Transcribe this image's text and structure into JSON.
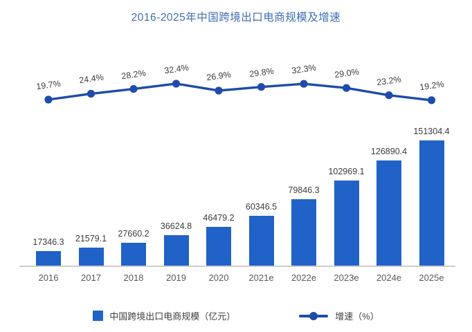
{
  "page": {
    "background_color": "#ffffff"
  },
  "chart_data": {
    "type": "bar",
    "combo": "bar+line",
    "title": "2016-2025年中国跨境出口电商规模及增速",
    "title_color": "#3e6cb5",
    "categories": [
      "2016",
      "2017",
      "2018",
      "2019",
      "2020",
      "2021e",
      "2022e",
      "2023e",
      "2024e",
      "2025e"
    ],
    "series": [
      {
        "name": "中国跨境出口电商规模（亿元）",
        "type": "bar",
        "color": "#2062c8",
        "values": [
          17346.3,
          21579.1,
          27660.2,
          36624.8,
          46479.2,
          60346.5,
          79846.3,
          102969.1,
          126890.4,
          151304.4
        ],
        "labels": [
          "17346.3",
          "21579.1",
          "27660.2",
          "36624.8",
          "46479.2",
          "60346.5",
          "79846.3",
          "102969.1",
          "126890.4",
          "151304.4"
        ]
      },
      {
        "name": "增速（%）",
        "type": "line",
        "color": "#1e4ca8",
        "values": [
          19.7,
          24.4,
          28.2,
          32.4,
          26.9,
          29.8,
          32.3,
          29.0,
          23.2,
          19.2
        ],
        "labels": [
          "19.7%",
          "24.4%",
          "28.2%",
          "32.4%",
          "26.9%",
          "29.8%",
          "32.3%",
          "29.0%",
          "23.2%",
          "19.2%"
        ]
      }
    ],
    "legend_position": "bottom",
    "grid": false,
    "y_axis_visible": false,
    "x_axis_line_color": "#cdcdcd",
    "data_label_color": "#3c3c3c",
    "axis_label_color": "#595959"
  }
}
